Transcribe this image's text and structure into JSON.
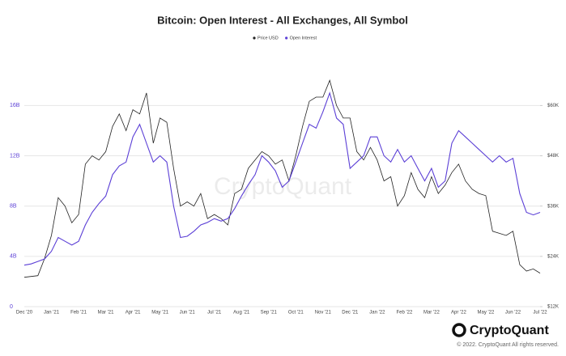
{
  "chart_data": {
    "type": "line",
    "title": "Bitcoin: Open Interest - All Exchanges, All Symbol",
    "watermark": "CryptoQuant",
    "brand": "CryptoQuant",
    "copyright": "© 2022. CryptoQuant All rights reserved.",
    "categories": [
      "Dec '20",
      null,
      null,
      null,
      "Jan '21",
      null,
      null,
      null,
      "Feb '21",
      null,
      null,
      null,
      "Mar '21",
      null,
      null,
      null,
      "Apr '21",
      null,
      null,
      null,
      "May '21",
      null,
      null,
      null,
      "Jun '21",
      null,
      null,
      null,
      "Jul '21",
      null,
      null,
      null,
      "Aug '21",
      null,
      null,
      null,
      "Sep '21",
      null,
      null,
      null,
      "Oct '21",
      null,
      null,
      null,
      "Nov '21",
      null,
      null,
      null,
      "Dec '21",
      null,
      null,
      null,
      "Jan '22",
      null,
      null,
      null,
      "Feb '22",
      null,
      null,
      null,
      "Mar '22",
      null,
      null,
      null,
      "Apr '22",
      null,
      null,
      null,
      "May '22",
      null,
      null,
      null,
      "Jun '22",
      null,
      null,
      null,
      "Jul '22"
    ],
    "series": [
      {
        "name": "Price USD",
        "color": "#222222",
        "axis": "y2",
        "values": [
          19000,
          19200,
          19400,
          23500,
          29000,
          38000,
          36000,
          32000,
          34000,
          46000,
          48000,
          47000,
          49000,
          55000,
          58000,
          54000,
          59000,
          58000,
          63000,
          51000,
          57000,
          56000,
          45000,
          36000,
          37000,
          36000,
          39000,
          33000,
          34000,
          33000,
          31500,
          39000,
          40000,
          45000,
          47000,
          49000,
          48000,
          46000,
          47000,
          42000,
          48000,
          55000,
          61000,
          62000,
          62000,
          66000,
          60000,
          57000,
          57000,
          49000,
          47000,
          50000,
          47000,
          42000,
          43000,
          36000,
          38500,
          44000,
          40000,
          38000,
          43000,
          39000,
          41000,
          44000,
          46000,
          42000,
          40000,
          39000,
          38500,
          30000,
          29500,
          29000,
          30000,
          22000,
          20500,
          21000,
          20000
        ]
      },
      {
        "name": "Open Interest",
        "color": "#5b3fd6",
        "values": [
          3.3,
          3.4,
          3.6,
          3.8,
          4.4,
          5.5,
          5.2,
          4.9,
          5.2,
          6.5,
          7.5,
          8.2,
          8.8,
          10.5,
          11.2,
          11.5,
          13.5,
          14.5,
          13.0,
          11.5,
          12.0,
          11.5,
          8.0,
          5.5,
          5.6,
          6.0,
          6.5,
          6.7,
          7.0,
          6.8,
          7.0,
          7.8,
          8.8,
          9.7,
          10.5,
          12.0,
          11.5,
          10.8,
          9.5,
          10.0,
          11.5,
          13.0,
          14.5,
          14.2,
          15.5,
          17.0,
          15.0,
          14.5,
          11.0,
          11.5,
          12.0,
          13.5,
          13.5,
          12.0,
          11.5,
          12.5,
          11.5,
          12.0,
          11.0,
          10.0,
          11.0,
          9.5,
          10.0,
          13.0,
          14.0,
          13.5,
          13.0,
          12.5,
          12.0,
          11.5,
          12.0,
          11.5,
          11.8,
          9.0,
          7.5,
          7.3,
          7.5
        ]
      }
    ],
    "ylim": [
      0,
      18.6
    ],
    "yticks": [
      0,
      {
        "value": 4,
        "label": "4B"
      },
      {
        "value": 8,
        "label": "8B"
      },
      {
        "value": 12,
        "label": "12B"
      },
      {
        "value": 16,
        "label": "16B"
      }
    ],
    "y2lim": [
      12000,
      67800
    ],
    "y2ticks": [
      {
        "value": 12000,
        "label": "$12K"
      },
      {
        "value": 24000,
        "label": "$24K"
      },
      {
        "value": 36000,
        "label": "$36K"
      },
      {
        "value": 48000,
        "label": "$48K"
      },
      {
        "value": 60000,
        "label": "$60K"
      }
    ],
    "grid": true,
    "legend": "top"
  }
}
